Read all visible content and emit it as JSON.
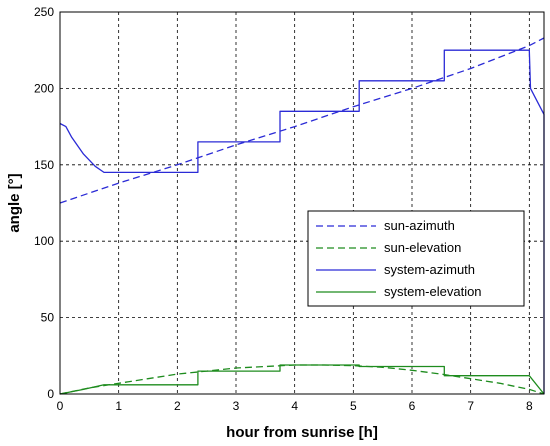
{
  "chart_data": {
    "type": "line",
    "xlabel": "hour from sunrise [h]",
    "ylabel": "angle [°]",
    "xlim": [
      0,
      8.25
    ],
    "ylim": [
      0,
      250
    ],
    "xticks": [
      0,
      1,
      2,
      3,
      4,
      5,
      6,
      7,
      8
    ],
    "yticks": [
      0,
      50,
      100,
      150,
      200,
      250
    ],
    "grid": true,
    "legend_placement": "center-right",
    "series": [
      {
        "name": "sun-azimuth",
        "color": "#2b2bd6",
        "style": "dashed",
        "x": [
          0,
          1,
          2,
          3,
          4,
          5,
          6,
          7,
          8,
          8.25
        ],
        "y": [
          125,
          138,
          150,
          163,
          175,
          188,
          200,
          213,
          228,
          233
        ]
      },
      {
        "name": "sun-elevation",
        "color": "#1e8c1e",
        "style": "dashed",
        "x": [
          0,
          0.5,
          1,
          1.5,
          2,
          2.5,
          3,
          3.5,
          4,
          4.5,
          5,
          5.5,
          6,
          6.5,
          7,
          7.5,
          8,
          8.25
        ],
        "y": [
          0,
          4,
          7,
          10,
          13,
          15,
          17,
          18,
          19,
          19,
          18.5,
          17.5,
          15.5,
          13,
          10,
          7,
          3,
          0
        ]
      },
      {
        "name": "system-azimuth",
        "color": "#2b2bd6",
        "style": "solid",
        "x": [
          0,
          0.1,
          0.2,
          0.4,
          0.6,
          0.75,
          2.35,
          2.35,
          3.75,
          3.75,
          5.1,
          5.1,
          6.55,
          6.55,
          8.0,
          8.02,
          8.25,
          8.25
        ],
        "y": [
          177,
          175,
          168,
          157,
          149,
          145,
          145,
          165,
          165,
          185,
          185,
          205,
          205,
          225,
          225,
          200,
          183,
          0
        ]
      },
      {
        "name": "system-elevation",
        "color": "#1e8c1e",
        "style": "solid",
        "x": [
          0,
          0.4,
          0.75,
          2.35,
          2.35,
          3.75,
          3.75,
          5.1,
          5.1,
          6.55,
          6.55,
          8.0,
          8.25
        ],
        "y": [
          0,
          3,
          6,
          6,
          15,
          15,
          19,
          19,
          18,
          18,
          12,
          12,
          0
        ]
      }
    ]
  }
}
